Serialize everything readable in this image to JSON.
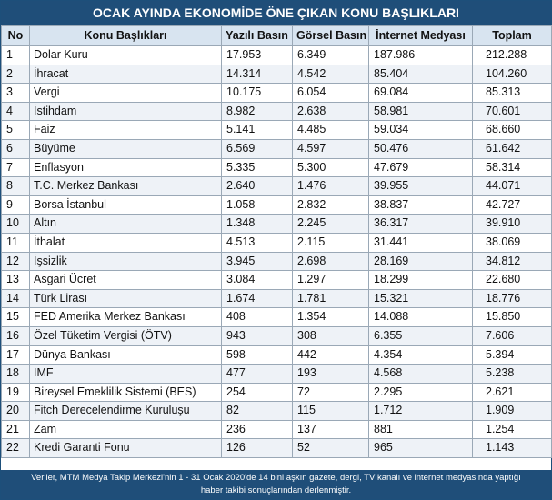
{
  "title": "OCAK AYINDA EKONOMİDE ÖNE ÇIKAN KONU BAŞLIKLARI",
  "headers": {
    "no": "No",
    "topic": "Konu Başlıkları",
    "print": "Yazılı Basın",
    "visual": "Görsel Basın",
    "internet": "İnternet Medyası",
    "total": "Toplam"
  },
  "rows": [
    {
      "no": "1",
      "topic": "Dolar Kuru",
      "print": "17.953",
      "visual": "6.349",
      "internet": "187.986",
      "total": "212.288"
    },
    {
      "no": "2",
      "topic": "İhracat",
      "print": "14.314",
      "visual": "4.542",
      "internet": "85.404",
      "total": "104.260"
    },
    {
      "no": "3",
      "topic": "Vergi",
      "print": "10.175",
      "visual": "6.054",
      "internet": "69.084",
      "total": "85.313"
    },
    {
      "no": "4",
      "topic": "İstihdam",
      "print": "8.982",
      "visual": "2.638",
      "internet": "58.981",
      "total": "70.601"
    },
    {
      "no": "5",
      "topic": "Faiz",
      "print": "5.141",
      "visual": "4.485",
      "internet": "59.034",
      "total": "68.660"
    },
    {
      "no": "6",
      "topic": "Büyüme",
      "print": "6.569",
      "visual": "4.597",
      "internet": "50.476",
      "total": "61.642"
    },
    {
      "no": "7",
      "topic": "Enflasyon",
      "print": "5.335",
      "visual": "5.300",
      "internet": "47.679",
      "total": "58.314"
    },
    {
      "no": "8",
      "topic": "T.C. Merkez Bankası",
      "print": "2.640",
      "visual": "1.476",
      "internet": "39.955",
      "total": "44.071"
    },
    {
      "no": "9",
      "topic": "Borsa İstanbul",
      "print": "1.058",
      "visual": "2.832",
      "internet": "38.837",
      "total": "42.727"
    },
    {
      "no": "10",
      "topic": "Altın",
      "print": "1.348",
      "visual": "2.245",
      "internet": "36.317",
      "total": "39.910"
    },
    {
      "no": "11",
      "topic": "İthalat",
      "print": "4.513",
      "visual": "2.115",
      "internet": "31.441",
      "total": "38.069"
    },
    {
      "no": "12",
      "topic": "İşsizlik",
      "print": "3.945",
      "visual": "2.698",
      "internet": "28.169",
      "total": "34.812"
    },
    {
      "no": "13",
      "topic": "Asgari Ücret",
      "print": "3.084",
      "visual": "1.297",
      "internet": "18.299",
      "total": "22.680"
    },
    {
      "no": "14",
      "topic": "Türk Lirası",
      "print": "1.674",
      "visual": "1.781",
      "internet": "15.321",
      "total": "18.776"
    },
    {
      "no": "15",
      "topic": "FED Amerika Merkez Bankası",
      "print": "408",
      "visual": "1.354",
      "internet": "14.088",
      "total": "15.850"
    },
    {
      "no": "16",
      "topic": "Özel Tüketim Vergisi (ÖTV)",
      "print": "943",
      "visual": "308",
      "internet": "6.355",
      "total": "7.606"
    },
    {
      "no": "17",
      "topic": "Dünya Bankası",
      "print": "598",
      "visual": "442",
      "internet": "4.354",
      "total": "5.394"
    },
    {
      "no": "18",
      "topic": "IMF",
      "print": "477",
      "visual": "193",
      "internet": "4.568",
      "total": "5.238"
    },
    {
      "no": "19",
      "topic": "Bireysel Emeklilik Sistemi (BES)",
      "print": "254",
      "visual": "72",
      "internet": "2.295",
      "total": "2.621"
    },
    {
      "no": "20",
      "topic": "Fitch Derecelendirme Kuruluşu",
      "print": "82",
      "visual": "115",
      "internet": "1.712",
      "total": "1.909"
    },
    {
      "no": "21",
      "topic": "Zam",
      "print": "236",
      "visual": "137",
      "internet": "881",
      "total": "1.254"
    },
    {
      "no": "22",
      "topic": "Kredi Garanti Fonu",
      "print": "126",
      "visual": "52",
      "internet": "965",
      "total": "1.143"
    }
  ],
  "footer": {
    "line1": "Veriler, MTM Medya Takip Merkezi'nin 1 - 31 Ocak 2020'de 14 bini aşkın gazete, dergi, TV kanalı ve internet medyasında yaptığı",
    "line2": "haber takibi sonuçlarından derlenmiştir."
  },
  "colors": {
    "header_bg": "#1f4e79",
    "column_header_bg": "#d8e4f0",
    "alt_row_bg": "#eef2f7"
  }
}
